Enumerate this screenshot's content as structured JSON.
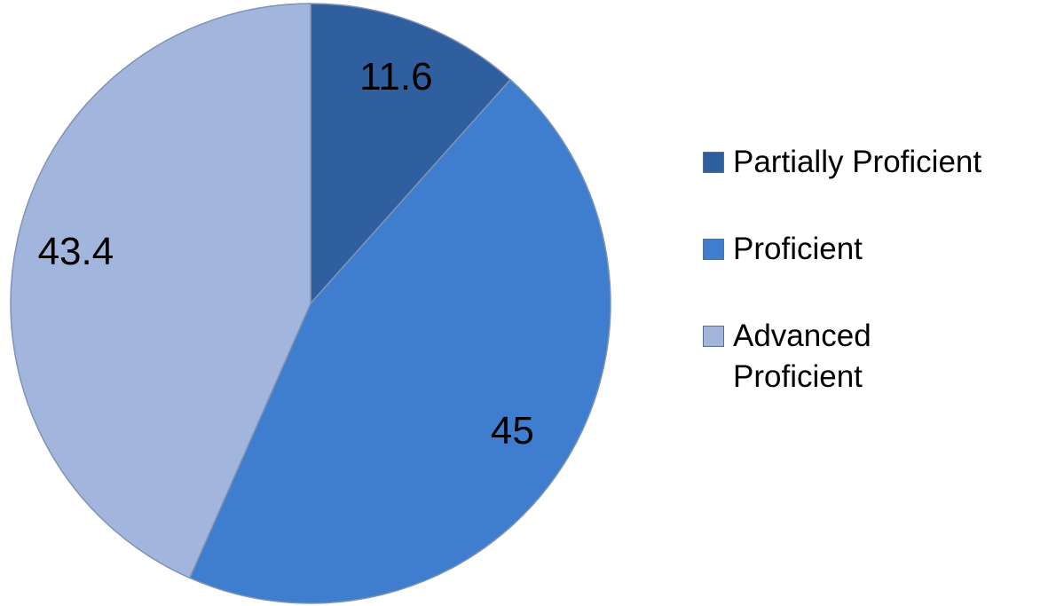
{
  "chart_data": {
    "type": "pie",
    "categories": [
      "Partially Proficient",
      "Proficient",
      "Advanced Proficient"
    ],
    "values": [
      11.6,
      45,
      43.4
    ],
    "colors": [
      "#2f5f9f",
      "#3f7ecf",
      "#a2b5dc"
    ]
  }
}
